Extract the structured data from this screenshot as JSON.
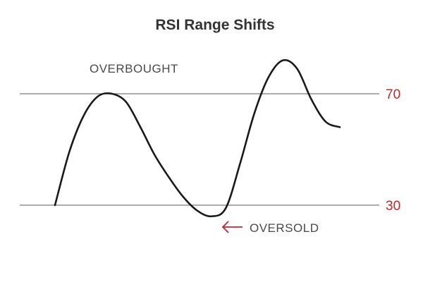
{
  "chart_data": {
    "type": "line",
    "title": "RSI Range Shifts",
    "xlabel": "",
    "ylabel": "",
    "ylim": [
      24,
      85
    ],
    "grid": false,
    "legend": "none",
    "reference_lines": [
      {
        "label": "70",
        "value": 70,
        "color": "#c0282d"
      },
      {
        "label": "30",
        "value": 30,
        "color": "#c0282d"
      }
    ],
    "annotations": {
      "overbought": "OVERBOUGHT",
      "oversold": "OVERSOLD"
    },
    "series": [
      {
        "line_color": "#1a1a1a",
        "points": [
          [
            0,
            30
          ],
          [
            1,
            49
          ],
          [
            2,
            62
          ],
          [
            3,
            69
          ],
          [
            4,
            70
          ],
          [
            5,
            67
          ],
          [
            6,
            58
          ],
          [
            7,
            48
          ],
          [
            8,
            40
          ],
          [
            9,
            33
          ],
          [
            10,
            28
          ],
          [
            11,
            26
          ],
          [
            12,
            29
          ],
          [
            13,
            45
          ],
          [
            14,
            63
          ],
          [
            15,
            76
          ],
          [
            16,
            82
          ],
          [
            17,
            79
          ],
          [
            18,
            68
          ],
          [
            19,
            60
          ],
          [
            20,
            58
          ]
        ]
      }
    ]
  },
  "colors": {
    "line": "#1a1a1a",
    "reference_line": "#7a7a7a",
    "reference_label": "#c0282d",
    "title": "#333333",
    "annotation": "#4a4a4a",
    "arrow": "#c0282d"
  }
}
